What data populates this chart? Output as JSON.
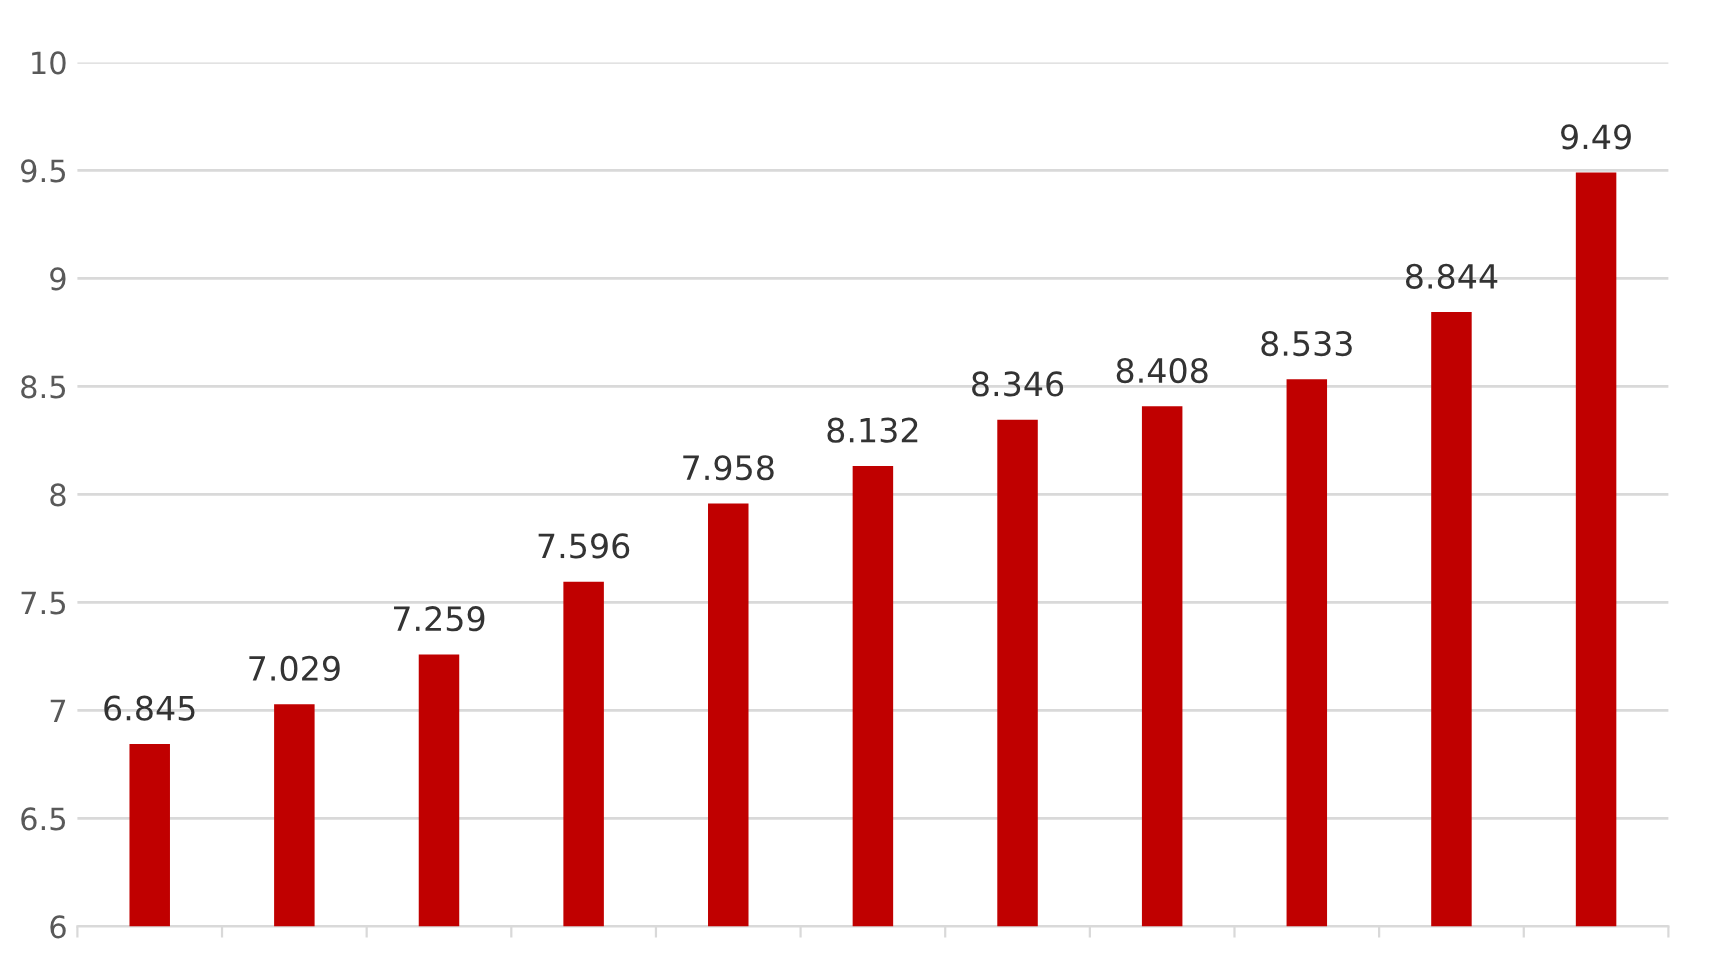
{
  "chart_data": {
    "type": "bar",
    "categories": [
      null,
      null,
      null,
      null,
      null,
      null,
      null,
      null,
      null,
      null,
      null
    ],
    "values": [
      6.845,
      7.029,
      7.259,
      7.596,
      7.958,
      8.132,
      8.346,
      8.408,
      8.533,
      8.844,
      9.49
    ],
    "color": "#c00000",
    "ylim": [
      6,
      10
    ],
    "yticks": [
      6,
      6.5,
      7,
      7.5,
      8,
      8.5,
      9,
      9.5,
      10
    ],
    "grid": "y",
    "data_labels": true
  }
}
